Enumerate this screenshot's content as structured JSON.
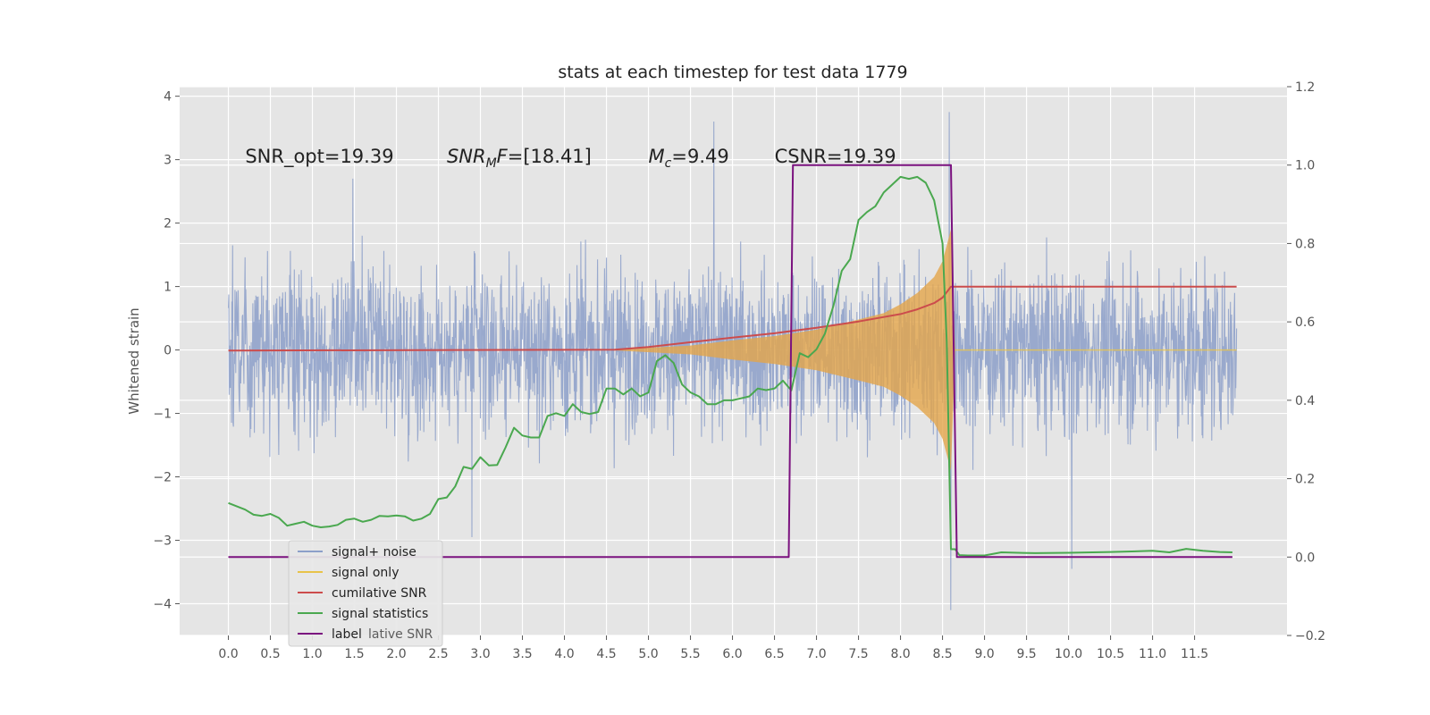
{
  "chart_data": {
    "type": "line",
    "title": "stats at each timestep for test data 1779",
    "xlabel": "",
    "ylabel": "Whitened strain",
    "xlim": [
      -0.58,
      12.6
    ],
    "ylim": [
      -4.5,
      4.15
    ],
    "y2lim": [
      -0.2,
      1.2
    ],
    "grid": true,
    "legend_position": "lower-left",
    "x_ticks": [
      "0.0",
      "0.5",
      "1.0",
      "1.5",
      "2.0",
      "2.5",
      "3.0",
      "3.5",
      "4.0",
      "4.5",
      "5.0",
      "5.5",
      "6.0",
      "6.5",
      "7.0",
      "7.5",
      "8.0",
      "8.5",
      "9.0",
      "9.5",
      "10.0",
      "10.5",
      "11.0",
      "11.5"
    ],
    "y_ticks": [
      "−4",
      "−3",
      "−2",
      "−1",
      "0",
      "1",
      "2",
      "3",
      "4"
    ],
    "y2_ticks": [
      "−0.2",
      "0.0",
      "0.2",
      "0.4",
      "0.6",
      "0.8",
      "1.0",
      "1.2"
    ],
    "annotations": [
      {
        "text": "SNR_opt=19.39",
        "x": 0.2,
        "y": 2.95
      },
      {
        "text_main": "SNR",
        "text_sub": "M",
        "text_rest": "F=[18.41]",
        "x": 2.6,
        "y": 2.95
      },
      {
        "text_main": "M",
        "text_sub": "c",
        "text_rest": "=9.49",
        "x": 5.0,
        "y": 2.95
      },
      {
        "text": "CSNR=19.39",
        "x": 6.5,
        "y": 2.95
      }
    ],
    "legend": [
      {
        "label": "signal+ noise",
        "color": "#8c9fc9"
      },
      {
        "label": "signal only",
        "color": "#e8c34a"
      },
      {
        "label": "cumilative SNR",
        "color": "#cc4c4c"
      },
      {
        "label": "signal statistics",
        "color": "#4aa84f"
      },
      {
        "label": "label",
        "color": "#7b127f"
      }
    ],
    "legend_ghost": "lative SNR",
    "series": [
      {
        "name": "signal+ noise",
        "axis": "left",
        "style": "noise band",
        "x_range": [
          0.0,
          12.0
        ],
        "typical_amplitude": 1.4,
        "extreme_peaks": [
          [
            5.78,
            3.6
          ],
          [
            8.58,
            3.75
          ],
          [
            8.6,
            -4.1
          ],
          [
            10.04,
            -3.45
          ],
          [
            2.9,
            -2.95
          ],
          [
            0.05,
            1.65
          ],
          [
            1.48,
            2.7
          ]
        ]
      },
      {
        "name": "signal only",
        "axis": "left",
        "style": "chirp envelope",
        "x": [
          4.5,
          5.5,
          6.0,
          6.5,
          7.0,
          7.5,
          7.8,
          8.0,
          8.2,
          8.4,
          8.5,
          8.6,
          8.65,
          12.0
        ],
        "amplitude": [
          0.0,
          0.07,
          0.15,
          0.22,
          0.32,
          0.48,
          0.58,
          0.72,
          0.9,
          1.15,
          1.4,
          1.9,
          0.0,
          0.0
        ]
      },
      {
        "name": "cumilative SNR",
        "axis": "right",
        "x": [
          0.0,
          4.6,
          5.0,
          5.5,
          6.0,
          6.5,
          7.0,
          7.5,
          8.0,
          8.2,
          8.4,
          8.5,
          8.6,
          8.65,
          12.0
        ],
        "values": [
          0.527,
          0.529,
          0.536,
          0.548,
          0.56,
          0.571,
          0.585,
          0.601,
          0.62,
          0.632,
          0.648,
          0.662,
          0.69,
          0.69,
          0.69
        ]
      },
      {
        "name": "signal statistics",
        "axis": "right",
        "x": [
          0.0,
          0.2,
          0.3,
          0.4,
          0.5,
          0.6,
          0.7,
          0.8,
          0.9,
          1.0,
          1.1,
          1.2,
          1.3,
          1.4,
          1.5,
          1.6,
          1.7,
          1.8,
          1.9,
          2.0,
          2.1,
          2.2,
          2.3,
          2.4,
          2.5,
          2.6,
          2.7,
          2.8,
          2.9,
          3.0,
          3.1,
          3.2,
          3.3,
          3.4,
          3.5,
          3.6,
          3.7,
          3.8,
          3.9,
          4.0,
          4.1,
          4.2,
          4.3,
          4.4,
          4.5,
          4.6,
          4.7,
          4.8,
          4.9,
          5.0,
          5.1,
          5.2,
          5.3,
          5.4,
          5.5,
          5.6,
          5.7,
          5.8,
          5.9,
          6.0,
          6.1,
          6.2,
          6.3,
          6.4,
          6.5,
          6.6,
          6.7,
          6.8,
          6.9,
          7.0,
          7.1,
          7.2,
          7.3,
          7.4,
          7.5,
          7.6,
          7.7,
          7.8,
          7.9,
          8.0,
          8.1,
          8.2,
          8.3,
          8.4,
          8.5,
          8.55,
          8.6,
          8.65,
          8.7,
          8.8,
          9.0,
          9.2,
          9.4,
          9.6,
          10.0,
          10.5,
          11.0,
          11.2,
          11.4,
          11.6,
          11.8,
          11.95
        ],
        "values": [
          0.138,
          0.121,
          0.108,
          0.105,
          0.11,
          0.1,
          0.08,
          0.085,
          0.09,
          0.08,
          0.076,
          0.078,
          0.082,
          0.095,
          0.098,
          0.09,
          0.095,
          0.105,
          0.104,
          0.106,
          0.104,
          0.093,
          0.098,
          0.11,
          0.148,
          0.152,
          0.18,
          0.23,
          0.225,
          0.255,
          0.234,
          0.235,
          0.28,
          0.33,
          0.31,
          0.305,
          0.305,
          0.36,
          0.367,
          0.36,
          0.39,
          0.37,
          0.365,
          0.37,
          0.43,
          0.43,
          0.415,
          0.43,
          0.41,
          0.42,
          0.5,
          0.515,
          0.495,
          0.44,
          0.42,
          0.41,
          0.39,
          0.39,
          0.4,
          0.4,
          0.405,
          0.41,
          0.43,
          0.426,
          0.43,
          0.45,
          0.425,
          0.52,
          0.51,
          0.53,
          0.57,
          0.64,
          0.73,
          0.76,
          0.86,
          0.88,
          0.895,
          0.93,
          0.95,
          0.97,
          0.965,
          0.97,
          0.955,
          0.91,
          0.8,
          0.55,
          0.02,
          0.02,
          0.005,
          0.004,
          0.004,
          0.012,
          0.011,
          0.01,
          0.011,
          0.013,
          0.016,
          0.012,
          0.021,
          0.016,
          0.013,
          0.012
        ]
      },
      {
        "name": "label",
        "axis": "right",
        "x": [
          0.0,
          6.67,
          6.72,
          8.6,
          8.67,
          11.95
        ],
        "values": [
          0.0,
          0.0,
          1.0,
          1.0,
          0.0,
          0.0
        ]
      }
    ]
  }
}
